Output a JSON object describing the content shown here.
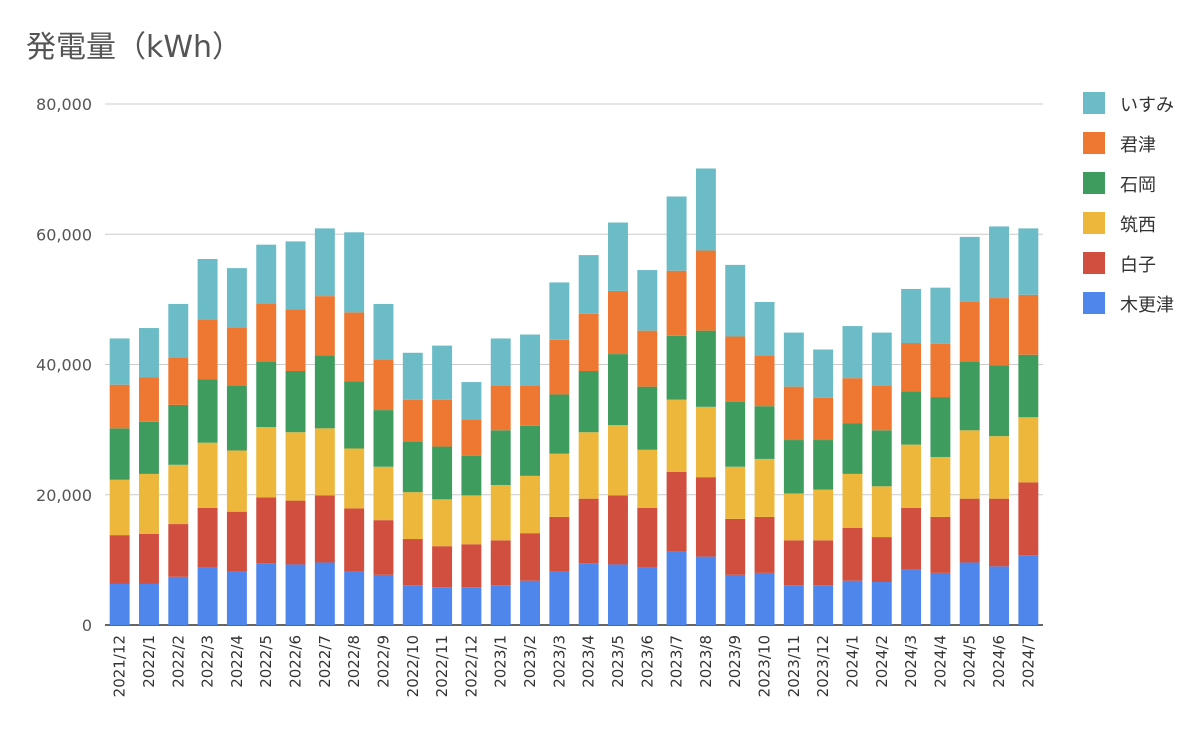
{
  "chart_data": {
    "type": "bar",
    "stacked": true,
    "title": "発電量（kWh）",
    "xlabel": "",
    "ylabel": "",
    "ylim": [
      0,
      80000
    ],
    "yticks": [
      0,
      20000,
      40000,
      60000,
      80000
    ],
    "ytick_labels": [
      "0",
      "20,000",
      "40,000",
      "60,000",
      "80,000"
    ],
    "grid": true,
    "legend_position": "right",
    "categories": [
      "2021/12",
      "2022/1",
      "2022/2",
      "2022/3",
      "2022/4",
      "2022/5",
      "2022/6",
      "2022/7",
      "2022/8",
      "2022/9",
      "2022/10",
      "2022/11",
      "2022/12",
      "2023/1",
      "2023/2",
      "2023/3",
      "2023/4",
      "2023/5",
      "2023/6",
      "2023/7",
      "2023/8",
      "2023/9",
      "2023/10",
      "2023/11",
      "2023/12",
      "2024/1",
      "2024/2",
      "2024/3",
      "2024/4",
      "2024/5",
      "2024/6",
      "2024/7"
    ],
    "series": [
      {
        "name": "木更津",
        "color": "#4f86ec",
        "values": [
          6300,
          6300,
          7400,
          8800,
          8200,
          9500,
          9300,
          9600,
          8200,
          7700,
          6100,
          5800,
          5800,
          6100,
          6800,
          8200,
          9500,
          9300,
          8800,
          11300,
          10500,
          7700,
          8000,
          6100,
          6100,
          6800,
          6600,
          8500,
          8000,
          9600,
          9000,
          10700
        ]
      },
      {
        "name": "白子",
        "color": "#d04f3f",
        "values": [
          7500,
          7700,
          8100,
          9200,
          9200,
          10100,
          9800,
          10300,
          9700,
          8400,
          7100,
          6300,
          6600,
          6900,
          7300,
          8400,
          9900,
          10600,
          9200,
          12200,
          12200,
          8600,
          8600,
          6900,
          6900,
          8100,
          6900,
          9500,
          8600,
          9800,
          10400,
          11200
        ]
      },
      {
        "name": "筑西",
        "color": "#ecb73b",
        "values": [
          8500,
          9200,
          9100,
          10000,
          9400,
          10800,
          10500,
          10300,
          9200,
          8200,
          7200,
          7200,
          7500,
          8500,
          8800,
          9700,
          10200,
          10800,
          8900,
          11100,
          10800,
          8000,
          8900,
          7200,
          7800,
          8300,
          7800,
          9700,
          9200,
          10500,
          9600,
          10000
        ]
      },
      {
        "name": "石岡",
        "color": "#3f9c5f",
        "values": [
          7900,
          8000,
          9200,
          9700,
          10000,
          10100,
          9400,
          11200,
          10300,
          8700,
          7700,
          8100,
          6100,
          8400,
          7700,
          9100,
          9400,
          10900,
          9700,
          9800,
          11700,
          10000,
          8100,
          8200,
          7600,
          7800,
          8600,
          8200,
          9200,
          10600,
          10900,
          9600
        ]
      },
      {
        "name": "君津",
        "color": "#ee7832",
        "values": [
          6700,
          6800,
          7200,
          9200,
          8900,
          8900,
          9500,
          9100,
          10600,
          7800,
          6500,
          7200,
          5600,
          6900,
          6200,
          8400,
          8800,
          9700,
          8600,
          10000,
          12300,
          10000,
          7800,
          8200,
          6500,
          6900,
          6900,
          7400,
          8200,
          9100,
          10300,
          9200
        ]
      },
      {
        "name": "いすみ",
        "color": "#6bbcc6",
        "values": [
          7100,
          7600,
          8300,
          9300,
          9100,
          9000,
          10400,
          10400,
          12300,
          8500,
          7200,
          8300,
          5700,
          7200,
          7800,
          8800,
          9000,
          10500,
          9300,
          11400,
          12600,
          11000,
          8200,
          8300,
          7400,
          8000,
          8100,
          8300,
          8600,
          10000,
          11000,
          10200
        ]
      }
    ]
  }
}
